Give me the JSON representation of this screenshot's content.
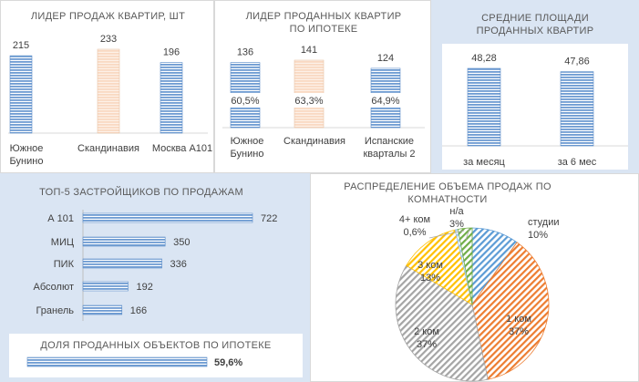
{
  "colors": {
    "bar_blue": "#6d9bd2",
    "bar_peach": "#fbe3d3",
    "panel_blue": "#dae5f3",
    "slice_blue": "#5b9bd5",
    "slice_orange": "#ed7d31",
    "slice_gray": "#a5a5a5",
    "slice_yellow": "#ffc000",
    "slice_lightblue": "#9dc3e6",
    "slice_green": "#70ad47"
  },
  "chart_data": [
    {
      "id": "leader",
      "type": "bar",
      "title": "ЛИДЕР  ПРОДАЖ  КВАРТИР, ШТ",
      "categories": [
        "Южное\nБунино",
        "Скандинавия",
        "Москва А101"
      ],
      "values": [
        215,
        233,
        196
      ],
      "value_labels": [
        "215",
        "233",
        "196"
      ],
      "highlight": [
        false,
        true,
        false
      ]
    },
    {
      "id": "mortgage",
      "type": "bar",
      "title": "ЛИДЕР  ПРОДАННЫХ  КВАРТИР\nПО ИПОТЕКЕ",
      "categories": [
        "Южное\nБунино",
        "Скандинавия",
        "Испанские\nкварталы 2"
      ],
      "values": [
        136,
        141,
        124
      ],
      "value_labels": [
        "136",
        "141",
        "124"
      ],
      "inner_labels": [
        "60,5%",
        "63,3%",
        "64,9%"
      ],
      "highlight": [
        false,
        true,
        false
      ]
    },
    {
      "id": "area",
      "type": "bar",
      "title": "СРЕДНИЕ  ПЛОЩАДИ\nПРОДАННЫХ  КВАРТИР",
      "categories": [
        "за месяц",
        "за 6 мес"
      ],
      "values": [
        48.28,
        47.86
      ],
      "value_labels": [
        "48,28",
        "47,86"
      ]
    },
    {
      "id": "top5",
      "type": "bar",
      "orientation": "horizontal",
      "title": "ТОП-5 ЗАСТРОЙЩИКОВ  ПО ПРОДАЖАМ",
      "categories": [
        "А 101",
        "МИЦ",
        "ПИК",
        "Абсолют",
        "Гранель"
      ],
      "values": [
        722,
        350,
        336,
        192,
        166
      ],
      "value_labels": [
        "722",
        "350",
        "336",
        "192",
        "166"
      ]
    },
    {
      "id": "share",
      "type": "bar",
      "orientation": "horizontal",
      "title": "ДОЛЯ  ПРОДАННЫХ  ОБЪЕКТОВ  ПО ИПОТЕКЕ",
      "values": [
        59.6
      ],
      "value_labels": [
        "59,6%"
      ]
    },
    {
      "id": "rooms",
      "type": "pie",
      "title": "РАСПРЕДЕЛЕНИЕ  ОБЪЕМА ПРОДАЖ  ПО\nКОМНАТНОСТИ",
      "slices": [
        {
          "name": "студии",
          "value": 10,
          "label": "студии\n10%",
          "color": "#5b9bd5"
        },
        {
          "name": "1 ком",
          "value": 37,
          "label": "1 ком\n37%",
          "color": "#ed7d31"
        },
        {
          "name": "2 ком",
          "value": 37,
          "label": "2 ком\n37%",
          "color": "#a5a5a5"
        },
        {
          "name": "3 ком",
          "value": 13,
          "label": "3 ком\n13%",
          "color": "#ffc000"
        },
        {
          "name": "4+ ком",
          "value": 0.6,
          "label": "4+ ком\n0,6%",
          "color": "#9dc3e6"
        },
        {
          "name": "н/а",
          "value": 3,
          "label": "н/а\n3%",
          "color": "#70ad47"
        }
      ]
    }
  ]
}
